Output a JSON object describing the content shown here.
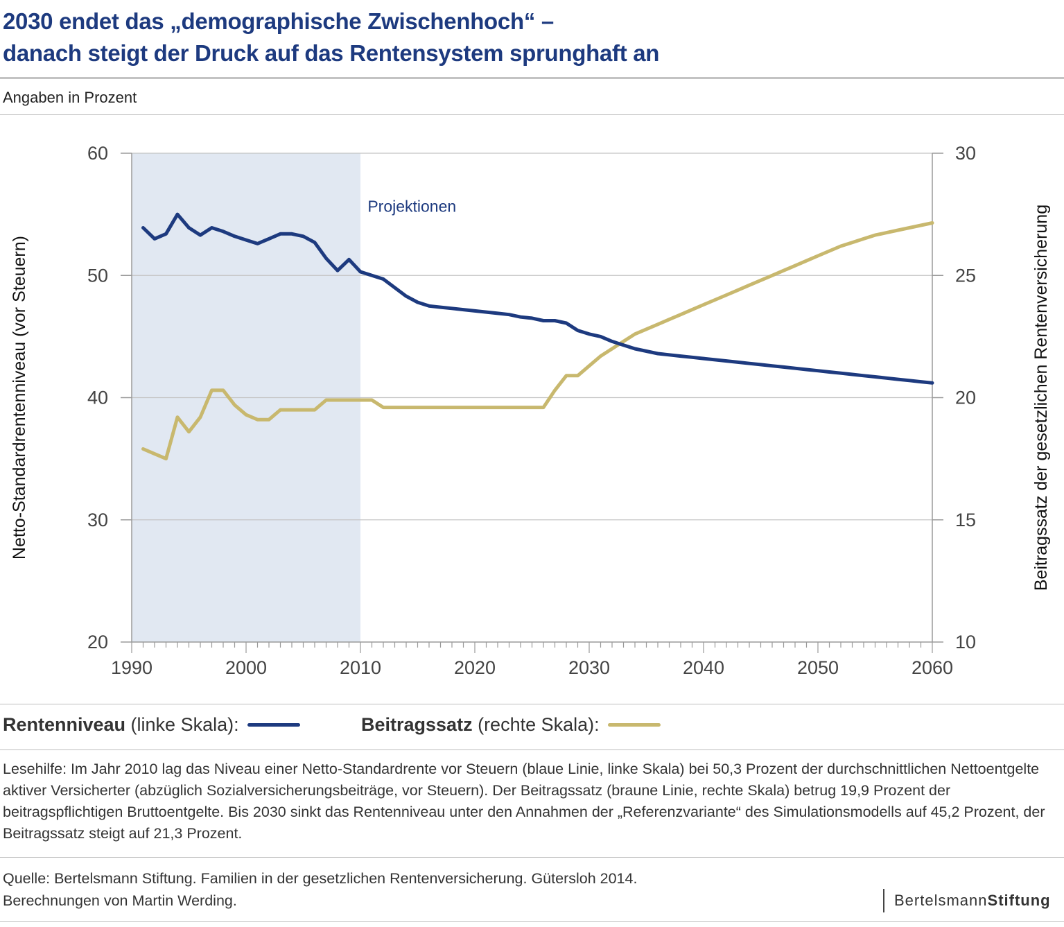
{
  "title_line1": "2030 endet das „demographische Zwischenhoch“ –",
  "title_line2": "danach steigt der Druck auf das Rentensystem sprunghaft an",
  "subtitle": "Angaben in Prozent",
  "chart_data": {
    "type": "line",
    "shaded_region": {
      "x": [
        1990,
        2010
      ],
      "label": "Projektionen",
      "color": "#e1e8f2"
    },
    "x_ticks": [
      1990,
      2000,
      2010,
      2020,
      2030,
      2040,
      2050,
      2060
    ],
    "xlim": [
      1990,
      2060
    ],
    "y_left": {
      "label": "Netto-Standardrentenniveau (vor Steuern)",
      "lim": [
        20,
        60
      ],
      "ticks": [
        20,
        30,
        40,
        50,
        60
      ]
    },
    "y_right": {
      "label": "Beitragssatz der gesetzlichen Rentenversicherung",
      "lim": [
        10,
        30
      ],
      "ticks": [
        10,
        15,
        20,
        25,
        30
      ]
    },
    "grid": "horizontal",
    "series": [
      {
        "name": "Rentenniveau",
        "axis": "left",
        "color": "#1d3a7f",
        "points": [
          [
            1991,
            53.9
          ],
          [
            1992,
            53.0
          ],
          [
            1993,
            53.4
          ],
          [
            1994,
            55.0
          ],
          [
            1995,
            53.9
          ],
          [
            1996,
            53.3
          ],
          [
            1997,
            53.9
          ],
          [
            1998,
            53.6
          ],
          [
            1999,
            53.2
          ],
          [
            2000,
            52.9
          ],
          [
            2001,
            52.6
          ],
          [
            2002,
            53.0
          ],
          [
            2003,
            53.4
          ],
          [
            2004,
            53.4
          ],
          [
            2005,
            53.2
          ],
          [
            2006,
            52.7
          ],
          [
            2007,
            51.4
          ],
          [
            2008,
            50.4
          ],
          [
            2009,
            51.3
          ],
          [
            2010,
            50.3
          ],
          [
            2011,
            50.0
          ],
          [
            2012,
            49.7
          ],
          [
            2013,
            49.0
          ],
          [
            2014,
            48.3
          ],
          [
            2015,
            47.8
          ],
          [
            2016,
            47.5
          ],
          [
            2017,
            47.4
          ],
          [
            2018,
            47.3
          ],
          [
            2019,
            47.2
          ],
          [
            2020,
            47.1
          ],
          [
            2021,
            47.0
          ],
          [
            2022,
            46.9
          ],
          [
            2023,
            46.8
          ],
          [
            2024,
            46.6
          ],
          [
            2025,
            46.5
          ],
          [
            2026,
            46.3
          ],
          [
            2027,
            46.3
          ],
          [
            2028,
            46.1
          ],
          [
            2029,
            45.5
          ],
          [
            2030,
            45.2
          ],
          [
            2031,
            45.0
          ],
          [
            2032,
            44.6
          ],
          [
            2033,
            44.3
          ],
          [
            2034,
            44.0
          ],
          [
            2035,
            43.8
          ],
          [
            2036,
            43.6
          ],
          [
            2037,
            43.5
          ],
          [
            2038,
            43.4
          ],
          [
            2039,
            43.3
          ],
          [
            2040,
            43.2
          ],
          [
            2041,
            43.1
          ],
          [
            2042,
            43.0
          ],
          [
            2043,
            42.9
          ],
          [
            2044,
            42.8
          ],
          [
            2045,
            42.7
          ],
          [
            2046,
            42.6
          ],
          [
            2047,
            42.5
          ],
          [
            2048,
            42.4
          ],
          [
            2049,
            42.3
          ],
          [
            2050,
            42.2
          ],
          [
            2051,
            42.1
          ],
          [
            2052,
            42.0
          ],
          [
            2053,
            41.9
          ],
          [
            2054,
            41.8
          ],
          [
            2055,
            41.7
          ],
          [
            2056,
            41.6
          ],
          [
            2057,
            41.5
          ],
          [
            2058,
            41.4
          ],
          [
            2059,
            41.3
          ],
          [
            2060,
            41.2
          ]
        ]
      },
      {
        "name": "Beitragssatz",
        "axis": "right",
        "color": "#c8b86e",
        "points": [
          [
            1991,
            17.9
          ],
          [
            1992,
            17.7
          ],
          [
            1993,
            17.5
          ],
          [
            1994,
            19.2
          ],
          [
            1995,
            18.6
          ],
          [
            1996,
            19.2
          ],
          [
            1997,
            20.3
          ],
          [
            1998,
            20.3
          ],
          [
            1999,
            19.7
          ],
          [
            2000,
            19.3
          ],
          [
            2001,
            19.1
          ],
          [
            2002,
            19.1
          ],
          [
            2003,
            19.5
          ],
          [
            2004,
            19.5
          ],
          [
            2005,
            19.5
          ],
          [
            2006,
            19.5
          ],
          [
            2007,
            19.9
          ],
          [
            2008,
            19.9
          ],
          [
            2009,
            19.9
          ],
          [
            2010,
            19.9
          ],
          [
            2011,
            19.9
          ],
          [
            2012,
            19.6
          ],
          [
            2013,
            19.6
          ],
          [
            2014,
            19.6
          ],
          [
            2015,
            19.6
          ],
          [
            2016,
            19.6
          ],
          [
            2017,
            19.6
          ],
          [
            2018,
            19.6
          ],
          [
            2019,
            19.6
          ],
          [
            2020,
            19.6
          ],
          [
            2021,
            19.6
          ],
          [
            2022,
            19.6
          ],
          [
            2023,
            19.6
          ],
          [
            2024,
            19.6
          ],
          [
            2025,
            19.6
          ],
          [
            2026,
            19.6
          ],
          [
            2027,
            20.3
          ],
          [
            2028,
            20.9
          ],
          [
            2029,
            20.9
          ],
          [
            2030,
            21.3
          ],
          [
            2031,
            21.7
          ],
          [
            2032,
            22.0
          ],
          [
            2033,
            22.3
          ],
          [
            2034,
            22.6
          ],
          [
            2035,
            22.8
          ],
          [
            2036,
            23.0
          ],
          [
            2037,
            23.2
          ],
          [
            2038,
            23.4
          ],
          [
            2039,
            23.6
          ],
          [
            2040,
            23.8
          ],
          [
            2041,
            24.0
          ],
          [
            2042,
            24.2
          ],
          [
            2043,
            24.4
          ],
          [
            2044,
            24.6
          ],
          [
            2045,
            24.8
          ],
          [
            2046,
            25.0
          ],
          [
            2047,
            25.2
          ],
          [
            2048,
            25.4
          ],
          [
            2049,
            25.6
          ],
          [
            2050,
            25.8
          ],
          [
            2051,
            26.0
          ],
          [
            2052,
            26.2
          ],
          [
            2053,
            26.35
          ],
          [
            2054,
            26.5
          ],
          [
            2055,
            26.65
          ],
          [
            2056,
            26.75
          ],
          [
            2057,
            26.85
          ],
          [
            2058,
            26.95
          ],
          [
            2059,
            27.05
          ],
          [
            2060,
            27.15
          ]
        ]
      }
    ]
  },
  "legend": {
    "item1_bold": "Rentenniveau",
    "item1_rest": " (linke Skala):",
    "item1_color": "#1d3a7f",
    "item2_bold": "Beitragssatz",
    "item2_rest": " (rechte Skala):",
    "item2_color": "#c8b86e"
  },
  "note": "Lesehilfe: Im Jahr 2010 lag das Niveau einer Netto-Standardrente vor Steuern (blaue Linie, linke Skala) bei 50,3 Prozent der durchschnittlichen Netto­entgelte aktiver Versicherter (abzüglich Sozialversicherungsbeiträge, vor Steuern). Der Beitragssatz (braune Linie, rechte Skala) betrug 19,9 Prozent der beitragspflichtigen Bruttoentgelte. Bis 2030 sinkt das Rentenniveau unter den Annahmen der „Referenzvariante“ des Simulationsmodells auf 45,2 Prozent, der Beitragssatz steigt auf 21,3 Prozent.",
  "source_line1": "Quelle: Bertelsmann Stiftung. Familien in der gesetzlichen Rentenversicherung. Gütersloh 2014.",
  "source_line2": "Berechnungen von Martin Werding.",
  "logo_part1": "Bertelsmann",
  "logo_part2": "Stiftung"
}
